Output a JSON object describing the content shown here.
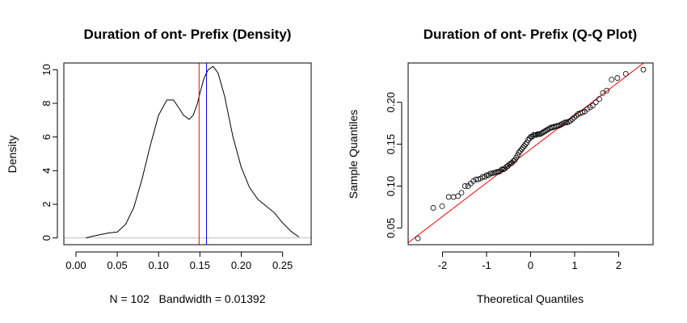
{
  "chart_data": [
    {
      "type": "line",
      "title": "Duration of ont- Prefix (Density)",
      "xlabel": "N = 102   Bandwidth = 0.01392",
      "ylabel": "Density",
      "xlim": [
        -0.0146,
        0.2846
      ],
      "ylim": [
        -0.4,
        10.4
      ],
      "xticks": [
        0.0,
        0.05,
        0.1,
        0.15,
        0.2,
        0.25
      ],
      "xtick_labels": [
        "0.00",
        "0.05",
        "0.10",
        "0.15",
        "0.20",
        "0.25"
      ],
      "yticks": [
        0,
        2,
        4,
        6,
        8,
        10
      ],
      "ytick_labels": [
        "0",
        "2",
        "4",
        "6",
        "8",
        "10"
      ],
      "baseline": 0,
      "colors": {
        "curve": "#000000",
        "baseline": "#bebebe",
        "mean_line": "#ff0000",
        "median_line": "#0000ff"
      },
      "vlines": [
        {
          "x": 0.149,
          "color": "#ff0000"
        },
        {
          "x": 0.158,
          "color": "#0000ff"
        }
      ],
      "x": [
        0.012,
        0.02,
        0.03,
        0.04,
        0.05,
        0.06,
        0.07,
        0.08,
        0.09,
        0.1,
        0.11,
        0.118,
        0.125,
        0.13,
        0.137,
        0.142,
        0.147,
        0.15,
        0.155,
        0.16,
        0.166,
        0.172,
        0.18,
        0.19,
        0.2,
        0.21,
        0.22,
        0.23,
        0.24,
        0.25,
        0.26,
        0.27
      ],
      "y": [
        0.0,
        0.1,
        0.2,
        0.3,
        0.35,
        0.8,
        1.8,
        3.5,
        5.5,
        7.3,
        8.2,
        8.2,
        7.7,
        7.3,
        7.05,
        7.3,
        8.0,
        8.6,
        9.5,
        10.0,
        10.2,
        9.8,
        8.4,
        6.0,
        4.2,
        3.0,
        2.3,
        1.9,
        1.5,
        0.9,
        0.4,
        0.05
      ]
    },
    {
      "type": "scatter",
      "title": "Duration of ont- Prefix (Q-Q Plot)",
      "xlabel": "Theoretical Quantiles",
      "ylabel": "Sample Quantiles",
      "xlim": [
        -2.78,
        2.78
      ],
      "ylim": [
        0.0301,
        0.2469
      ],
      "xticks": [
        -2,
        -1,
        0,
        1,
        2
      ],
      "xtick_labels": [
        "-2",
        "-1",
        "0",
        "1",
        "2"
      ],
      "yticks": [
        0.05,
        0.1,
        0.15,
        0.2
      ],
      "ytick_labels": [
        "0.05",
        "0.10",
        "0.15",
        "0.20"
      ],
      "colors": {
        "points": "#000000",
        "qq_line": "#ff0000"
      },
      "qq_line": {
        "x": [
          -2.78,
          2.78
        ],
        "y": [
          0.0325,
          0.2555
        ]
      },
      "points": {
        "x": [
          -2.56,
          -2.21,
          -2.01,
          -1.86,
          -1.75,
          -1.65,
          -1.57,
          -1.49,
          -1.42,
          -1.36,
          -1.3,
          -1.24,
          -1.19,
          -1.14,
          -1.09,
          -1.04,
          -0.998,
          -0.955,
          -0.914,
          -0.873,
          -0.834,
          -0.796,
          -0.759,
          -0.722,
          -0.687,
          -0.651,
          -0.617,
          -0.583,
          -0.549,
          -0.516,
          -0.484,
          -0.451,
          -0.419,
          -0.388,
          -0.356,
          -0.325,
          -0.295,
          -0.264,
          -0.234,
          -0.203,
          -0.173,
          -0.143,
          -0.113,
          -0.084,
          -0.054,
          -0.024,
          0.006,
          0.036,
          0.066,
          0.096,
          0.126,
          0.156,
          0.186,
          0.216,
          0.247,
          0.278,
          0.309,
          0.34,
          0.372,
          0.404,
          0.436,
          0.469,
          0.502,
          0.535,
          0.569,
          0.604,
          0.639,
          0.675,
          0.711,
          0.748,
          0.786,
          0.825,
          0.865,
          0.905,
          0.948,
          0.992,
          1.04,
          1.08,
          1.13,
          1.18,
          1.23,
          1.29,
          1.35,
          1.41,
          1.48,
          1.56,
          1.64,
          1.73,
          1.84,
          1.97,
          2.16,
          2.56
        ],
        "y": [
          0.0376,
          0.074,
          0.076,
          0.087,
          0.087,
          0.088,
          0.092,
          0.1,
          0.1,
          0.103,
          0.106,
          0.108,
          0.108,
          0.109,
          0.111,
          0.111,
          0.113,
          0.113,
          0.115,
          0.115,
          0.116,
          0.116,
          0.117,
          0.117,
          0.118,
          0.12,
          0.12,
          0.121,
          0.123,
          0.124,
          0.126,
          0.127,
          0.128,
          0.13,
          0.131,
          0.134,
          0.137,
          0.14,
          0.142,
          0.144,
          0.146,
          0.148,
          0.15,
          0.152,
          0.155,
          0.157,
          0.159,
          0.159,
          0.161,
          0.161,
          0.161,
          0.162,
          0.162,
          0.162,
          0.163,
          0.164,
          0.165,
          0.166,
          0.167,
          0.168,
          0.169,
          0.17,
          0.17,
          0.171,
          0.171,
          0.172,
          0.172,
          0.173,
          0.174,
          0.175,
          0.176,
          0.176,
          0.177,
          0.178,
          0.18,
          0.182,
          0.184,
          0.186,
          0.187,
          0.188,
          0.189,
          0.192,
          0.194,
          0.196,
          0.2,
          0.204,
          0.211,
          0.214,
          0.227,
          0.229,
          0.234,
          0.239
        ]
      }
    }
  ]
}
